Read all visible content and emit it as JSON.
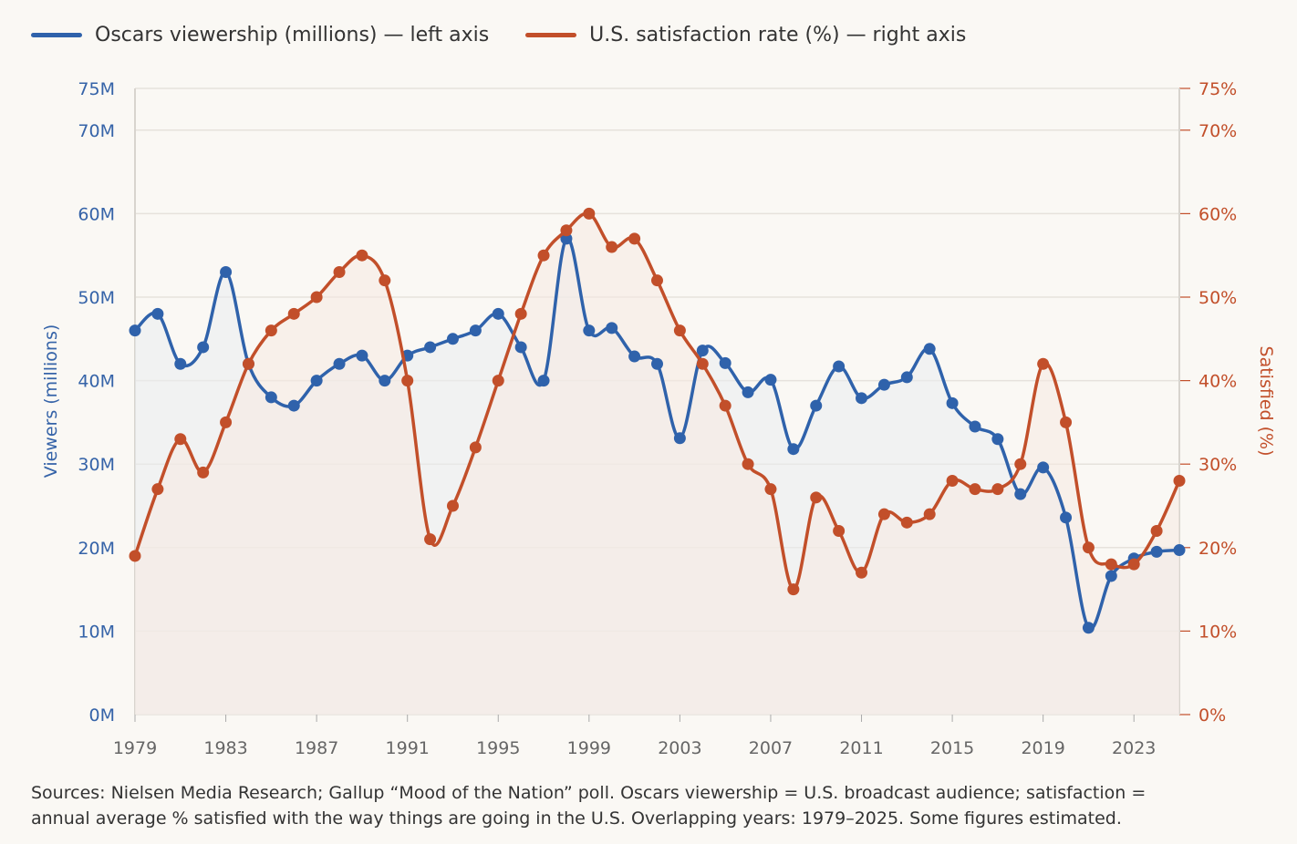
{
  "chart_data": {
    "type": "line",
    "title": "",
    "legend": [
      {
        "label": "Oscars viewership (millions) — left axis",
        "color": "#2f62ab"
      },
      {
        "label": "U.S. satisfaction rate (%) — right axis",
        "color": "#c24f2a"
      }
    ],
    "legend_placement": "top-left",
    "x": [
      1979,
      1980,
      1981,
      1982,
      1983,
      1984,
      1985,
      1986,
      1987,
      1988,
      1989,
      1990,
      1991,
      1992,
      1993,
      1994,
      1995,
      1996,
      1997,
      1998,
      1999,
      2000,
      2001,
      2002,
      2003,
      2004,
      2005,
      2006,
      2007,
      2008,
      2009,
      2010,
      2011,
      2012,
      2013,
      2014,
      2015,
      2016,
      2017,
      2018,
      2019,
      2020,
      2021,
      2022,
      2023,
      2024,
      2025
    ],
    "xticks": [
      "1979",
      "1983",
      "1987",
      "1991",
      "1995",
      "1999",
      "2003",
      "2007",
      "2011",
      "2015",
      "2019",
      "2023"
    ],
    "series": [
      {
        "name": "Oscars viewership (millions)",
        "axis": "left",
        "color": "#2f62ab",
        "fill": "#e9ecf1",
        "values": [
          46,
          48,
          42,
          44,
          53,
          42,
          38,
          37,
          40,
          42,
          43,
          40,
          43,
          44,
          45,
          46,
          48,
          44,
          40,
          57,
          46,
          46.3,
          42.9,
          42,
          33.1,
          43.6,
          42.1,
          38.6,
          40.1,
          31.8,
          37,
          41.7,
          37.9,
          39.5,
          40.4,
          43.8,
          37.3,
          34.5,
          33,
          26.4,
          29.6,
          23.6,
          10.4,
          16.6,
          18.7,
          19.5,
          19.7
        ]
      },
      {
        "name": "U.S. satisfaction rate (%)",
        "axis": "right",
        "color": "#c24f2a",
        "fill": "#f6e9e2",
        "values": [
          19,
          27,
          33,
          29,
          35,
          42,
          46,
          48,
          50,
          53,
          55,
          52,
          40,
          21,
          25,
          32,
          40,
          48,
          55,
          58,
          60,
          56,
          57,
          52,
          46,
          42,
          37,
          30,
          27,
          15,
          26,
          22,
          17,
          24,
          23,
          24,
          28,
          27,
          27,
          30,
          42,
          35,
          20,
          18,
          18,
          22,
          28
        ]
      }
    ],
    "left_axis": {
      "label": "Viewers (millions)",
      "range": [
        0,
        75
      ],
      "ticks": [
        "0M",
        "10M",
        "20M",
        "30M",
        "40M",
        "50M",
        "60M",
        "70M",
        "75M"
      ],
      "tick_values": [
        0,
        10,
        20,
        30,
        40,
        50,
        60,
        70,
        75
      ]
    },
    "right_axis": {
      "label": "Satisfied (%)",
      "range": [
        0,
        75
      ],
      "ticks": [
        "0%",
        "10%",
        "20%",
        "30%",
        "40%",
        "50%",
        "60%",
        "70%",
        "75%"
      ],
      "tick_values": [
        0,
        10,
        20,
        30,
        40,
        50,
        60,
        70,
        75
      ]
    },
    "grid": true
  },
  "footer": {
    "line1": "Sources: Nielsen Media Research; Gallup “Mood of the Nation” poll. Oscars viewership = U.S. broadcast audience; satisfaction =",
    "line2": "annual average % satisfied with the way things are going in the U.S. Overlapping years: 1979–2025. Some figures estimated."
  }
}
